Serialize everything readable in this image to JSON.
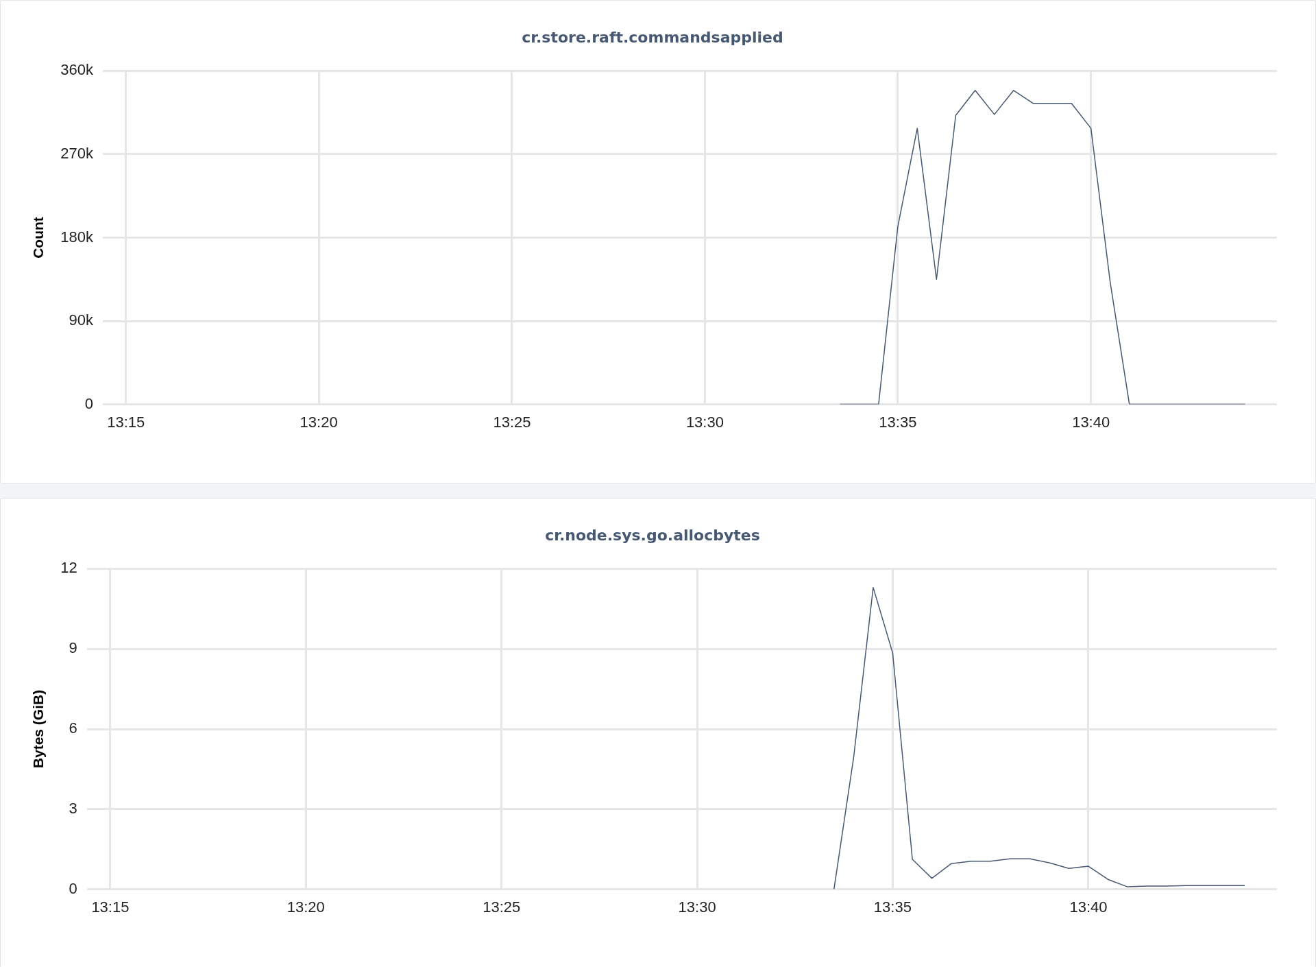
{
  "chart_data": [
    {
      "type": "line",
      "title": "cr.store.raft.commandsapplied",
      "ylabel": "Count",
      "grid": true,
      "legend": false,
      "marker": "none",
      "x": [
        13.5583,
        13.5667,
        13.575,
        13.5833,
        13.5917,
        13.6,
        13.6083,
        13.6167,
        13.625,
        13.6333,
        13.6417,
        13.65,
        13.6583,
        13.6667,
        13.675,
        13.6833,
        13.6917,
        13.7,
        13.7083,
        13.7167,
        13.725,
        13.7333
      ],
      "series": [
        {
          "color": "#475872",
          "values": [
            0,
            0,
            0,
            192000,
            298000,
            135000,
            312000,
            339000,
            313000,
            339000,
            325000,
            325000,
            325000,
            298000,
            132000,
            0,
            0,
            0,
            0,
            0,
            0,
            0
          ]
        }
      ],
      "xlim": [
        13.24,
        13.747
      ],
      "xticks": [
        {
          "value": 13.25,
          "label": "13:15"
        },
        {
          "value": 13.3333,
          "label": "13:20"
        },
        {
          "value": 13.4167,
          "label": "13:25"
        },
        {
          "value": 13.5,
          "label": "13:30"
        },
        {
          "value": 13.5833,
          "label": "13:35"
        },
        {
          "value": 13.6667,
          "label": "13:40"
        }
      ],
      "ylim": [
        0,
        360000
      ],
      "yticks": [
        0,
        {
          "value": 90000,
          "label": "90k"
        },
        {
          "value": 180000,
          "label": "180k"
        },
        {
          "value": 270000,
          "label": "270k"
        },
        {
          "value": 360000,
          "label": "360k"
        }
      ]
    },
    {
      "type": "line",
      "title": "cr.node.sys.go.allocbytes",
      "ylabel": "Bytes (GiB)",
      "grid": true,
      "legend": false,
      "marker": "none",
      "x": [
        13.5583,
        13.5667,
        13.575,
        13.5833,
        13.5917,
        13.6,
        13.6083,
        13.6167,
        13.625,
        13.6333,
        13.6417,
        13.65,
        13.6583,
        13.6667,
        13.675,
        13.6833,
        13.6917,
        13.7,
        13.7083,
        13.7167,
        13.725,
        13.7333
      ],
      "series": [
        {
          "color": "#475872",
          "values": [
            0,
            4.95,
            11.3,
            8.85,
            1.12,
            0.41,
            0.96,
            1.05,
            1.05,
            1.14,
            1.14,
            0.99,
            0.78,
            0.86,
            0.37,
            0.09,
            0.12,
            0.12,
            0.14,
            0.14,
            0.14,
            0.14
          ]
        }
      ],
      "xlim": [
        13.24,
        13.747
      ],
      "xticks": [
        {
          "value": 13.25,
          "label": "13:15"
        },
        {
          "value": 13.3333,
          "label": "13:20"
        },
        {
          "value": 13.4167,
          "label": "13:25"
        },
        {
          "value": 13.5,
          "label": "13:30"
        },
        {
          "value": 13.5833,
          "label": "13:35"
        },
        {
          "value": 13.6667,
          "label": "13:40"
        }
      ],
      "ylim": [
        0,
        12
      ],
      "yticks": [
        0,
        3,
        6,
        9,
        12
      ]
    }
  ]
}
